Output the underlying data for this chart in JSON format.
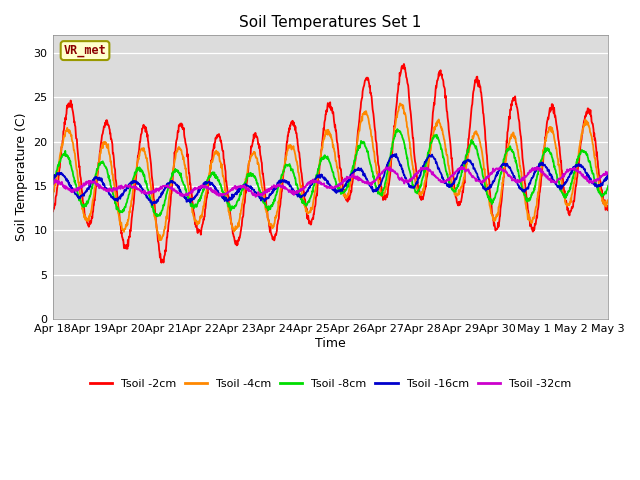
{
  "title": "Soil Temperatures Set 1",
  "xlabel": "Time",
  "ylabel": "Soil Temperature (C)",
  "ylim": [
    0,
    32
  ],
  "yticks": [
    0,
    5,
    10,
    15,
    20,
    25,
    30
  ],
  "background_color": "#dcdcdc",
  "annotation_text": "VR_met",
  "annotation_fg": "#8B0000",
  "annotation_bg": "#ffffcc",
  "annotation_edge": "#999900",
  "series_colors": {
    "Tsoil -2cm": "#ff0000",
    "Tsoil -4cm": "#ff8800",
    "Tsoil -8cm": "#00dd00",
    "Tsoil -16cm": "#0000cc",
    "Tsoil -32cm": "#cc00cc"
  },
  "date_labels": [
    "Apr 18",
    "Apr 19",
    "Apr 20",
    "Apr 21",
    "Apr 22",
    "Apr 23",
    "Apr 24",
    "Apr 25",
    "Apr 26",
    "Apr 27",
    "Apr 28",
    "Apr 29",
    "Apr 30",
    "May 1",
    "May 2",
    "May 3"
  ],
  "date_label_days": [
    0,
    1,
    2,
    3,
    4,
    5,
    6,
    7,
    8,
    9,
    10,
    11,
    12,
    13,
    14,
    15
  ]
}
